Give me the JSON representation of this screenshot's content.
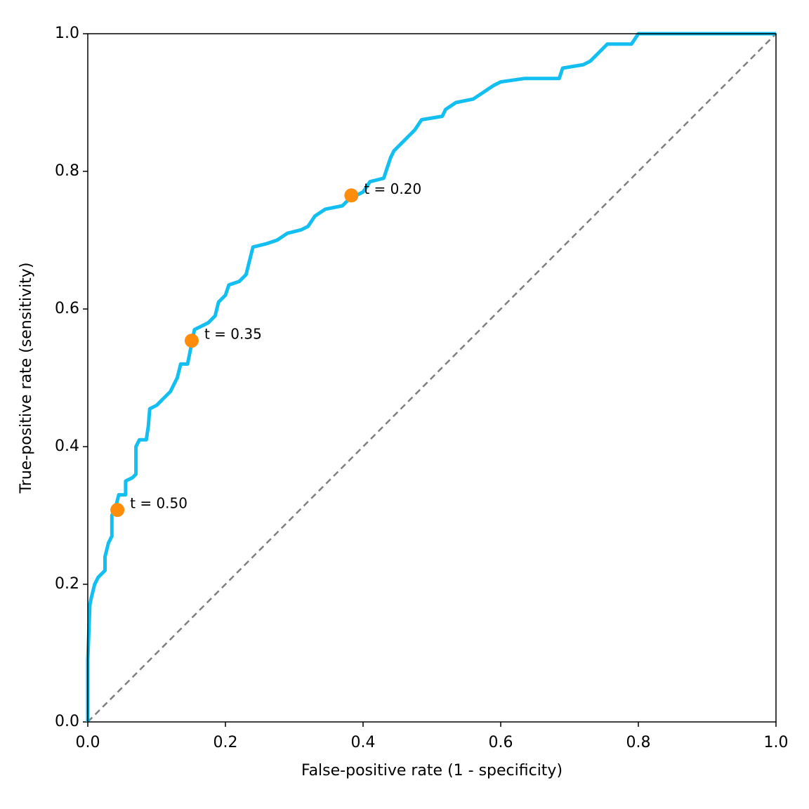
{
  "chart_data": {
    "type": "line",
    "xlabel": "False-positive rate (1 - specificity)",
    "ylabel": "True-positive rate (sensitivity)",
    "xlim": [
      0,
      1
    ],
    "ylim": [
      0,
      1
    ],
    "xticks": [
      {
        "value": 0,
        "label": "0.0"
      },
      0.2,
      0.4,
      0.6,
      0.8,
      {
        "value": 1,
        "label": "1.0"
      }
    ],
    "yticks": [
      {
        "value": 0,
        "label": "0.0"
      },
      0.2,
      0.4,
      0.6,
      0.8,
      {
        "value": 1,
        "label": "1.0"
      }
    ],
    "roc": {
      "color": "#13bff0",
      "x": [
        0,
        0,
        0.003,
        0.005,
        0.01,
        0.015,
        0.025,
        0.025,
        0.03,
        0.035,
        0.035,
        0.04,
        0.045,
        0.055,
        0.055,
        0.065,
        0.07,
        0.07,
        0.075,
        0.085,
        0.088,
        0.09,
        0.1,
        0.11,
        0.12,
        0.125,
        0.13,
        0.135,
        0.145,
        0.15,
        0.155,
        0.165,
        0.175,
        0.185,
        0.19,
        0.2,
        0.205,
        0.22,
        0.23,
        0.235,
        0.24,
        0.26,
        0.275,
        0.29,
        0.31,
        0.32,
        0.33,
        0.345,
        0.37,
        0.38,
        0.4,
        0.41,
        0.43,
        0.44,
        0.445,
        0.455,
        0.465,
        0.475,
        0.485,
        0.515,
        0.52,
        0.535,
        0.56,
        0.575,
        0.59,
        0.6,
        0.635,
        0.685,
        0.69,
        0.72,
        0.73,
        0.745,
        0.755,
        0.79,
        0.8,
        1
      ],
      "values": [
        0,
        0.09,
        0.17,
        0.18,
        0.2,
        0.21,
        0.22,
        0.24,
        0.26,
        0.27,
        0.3,
        0.31,
        0.33,
        0.33,
        0.35,
        0.355,
        0.36,
        0.4,
        0.41,
        0.41,
        0.43,
        0.455,
        0.46,
        0.47,
        0.48,
        0.49,
        0.5,
        0.52,
        0.52,
        0.545,
        0.57,
        0.575,
        0.58,
        0.59,
        0.61,
        0.62,
        0.635,
        0.64,
        0.65,
        0.67,
        0.69,
        0.695,
        0.7,
        0.71,
        0.715,
        0.72,
        0.735,
        0.745,
        0.75,
        0.76,
        0.77,
        0.785,
        0.79,
        0.82,
        0.83,
        0.84,
        0.85,
        0.86,
        0.875,
        0.88,
        0.89,
        0.9,
        0.905,
        0.915,
        0.925,
        0.93,
        0.935,
        0.935,
        0.95,
        0.955,
        0.96,
        0.975,
        0.985,
        0.985,
        1,
        1
      ]
    },
    "chance": {
      "color": "#7f7f7f",
      "dashed": true,
      "x": [
        0,
        1
      ],
      "values": [
        0,
        1
      ]
    },
    "thresholds": {
      "color": "#ff8c0a",
      "x": [
        0.043,
        0.151,
        0.383
      ],
      "values": [
        0.308,
        0.554,
        0.765
      ],
      "labels": [
        "t = 0.50",
        "t = 0.35",
        "t = 0.20"
      ]
    }
  }
}
